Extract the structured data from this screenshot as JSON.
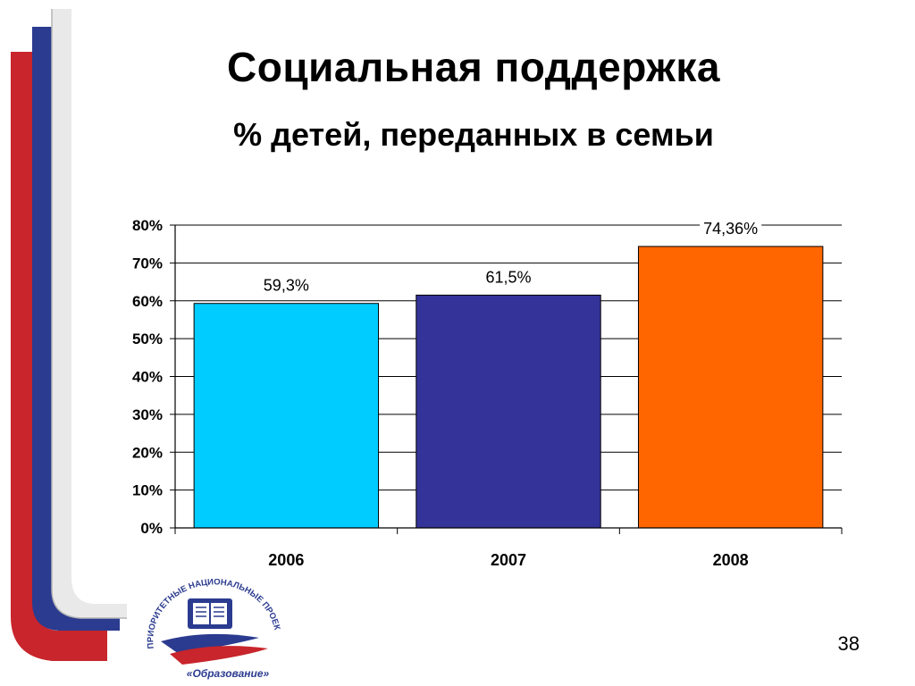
{
  "slide": {
    "title": "Социальная поддержка",
    "subtitle": "% детей, переданных в семьи",
    "page_number": "38"
  },
  "logo": {
    "icon": "national-projects-education-logo",
    "arc_text": "ПРИОРИТЕТНЫЕ НАЦИОНАЛЬНЫЕ ПРОЕКТЫ",
    "bottom_text": "«Образование»"
  },
  "colors": {
    "stripe_red": "#c8252c",
    "stripe_blue": "#2b3b8f",
    "gridline": "#000000"
  },
  "chart_data": {
    "type": "bar",
    "title": "",
    "xlabel": "",
    "ylabel": "",
    "categories": [
      "2006",
      "2007",
      "2008"
    ],
    "values": [
      59.3,
      61.5,
      74.36
    ],
    "data_labels": [
      "59,3%",
      "61,5%",
      "74,36%"
    ],
    "bar_colors": [
      "#00ccff",
      "#333399",
      "#ff6600"
    ],
    "ylim": [
      0,
      80
    ],
    "y_ticks": [
      0,
      10,
      20,
      30,
      40,
      50,
      60,
      70,
      80
    ],
    "y_tick_labels": [
      "0%",
      "10%",
      "20%",
      "30%",
      "40%",
      "50%",
      "60%",
      "70%",
      "80%"
    ],
    "grid": true,
    "legend": "none"
  }
}
